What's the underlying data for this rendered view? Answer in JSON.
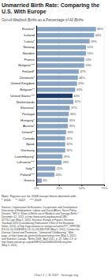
{
  "chart_data": {
    "type": "bar",
    "orientation": "horizontal",
    "title": "Unmarried Birth Rate: Comparing the\nU.S. With Europe",
    "subtitle": "Out-of-Wedlock Births as a Percentage of All Births",
    "categories": [
      "Estonia*",
      "Iceland",
      "Latvia*",
      "Norway",
      "Sweden",
      "France",
      "Bulgaria***",
      "Finland*",
      "Denmark*",
      "United Kingdom",
      "Belgium**",
      "United States***",
      "Netherlands",
      "Slovenia*",
      "Portugal",
      "Hungary*",
      "Austria*",
      "Ireland**",
      "Canada",
      "Spain",
      "Germany",
      "Luxembourg*",
      "Lithuania***",
      "Italy**",
      "Poland***",
      "Greece"
    ],
    "values": [
      66,
      64,
      59,
      55,
      55,
      53,
      53,
      47,
      46,
      45,
      43,
      40,
      41,
      37,
      36,
      35,
      35,
      33,
      32,
      32,
      32,
      29,
      28,
      21,
      20,
      6
    ],
    "value_labels": [
      "66%",
      "64%",
      "59%",
      "55%",
      "55%",
      "53%",
      "53%",
      "47%",
      "46%",
      "45%",
      "43%",
      "40%",
      "41%",
      "37%",
      "36%",
      "35%",
      "35%",
      "33%",
      "32%",
      "32%",
      "32%",
      "29%",
      "28%",
      "21%",
      "20%",
      "6%"
    ],
    "data_labels": true,
    "colors": [
      "#8aa4c4",
      "#8aa4c4",
      "#8aa4c4",
      "#8aa4c4",
      "#8aa4c4",
      "#8aa4c4",
      "#8aa4c4",
      "#8aa4c4",
      "#8aa4c4",
      "#8aa4c4",
      "#8aa4c4",
      "#1a3d6b",
      "#8aa4c4",
      "#8aa4c4",
      "#8aa4c4",
      "#8aa4c4",
      "#8aa4c4",
      "#8aa4c4",
      "#8aa4c4",
      "#8aa4c4",
      "#8aa4c4",
      "#8aa4c4",
      "#8aa4c4",
      "#8aa4c4",
      "#8aa4c4",
      "#8aa4c4"
    ],
    "xlim": [
      0,
      75
    ],
    "xticks": [
      {
        "value": 0,
        "label": "0%"
      },
      {
        "value": 25,
        "label": "25%"
      },
      {
        "value": 50,
        "label": "50%"
      },
      {
        "value": 75,
        "label": "75%"
      }
    ],
    "grid": true,
    "annotations": [
      "Note: Figures are for 2008 except those denoted with:\n* 2006     ** 2007     *** 2009",
      "Sources: Organisation for Economic Co-operation and Development,\nDirectorate of Employment, Labour and Social Affairs, Social Policy\nDivision, \"SF2.4: Share of Births out of Wedlock and Teenage Births,\"\nDecember 12, 2012, at http://www.oecd.org/dataoecd/1/86/\n41776,1.ppt (May 5, 2011); Eurostat, Europe in Figures: Eurostat\nYearbook 2013 (Luxembourg Publications Office of the European\nUnion, 2010), at http://epp.eurostat.ec.europa.eu/cache/ITY_OFFPUB/\nKS-CD-10-220/EN/KS-CD-10-220-EN.PDF (May 5, 2011); Centers for\nDisease Control and Prevention, \"Unmarried Childbearing,\" Web\npage, at http://www.cdc.gov/nchs/fastats/unmarr.htm (May 5, 2011);\nand Statistics Canada, \"Births 2008,\" April 2011, p. 20, Table 2-3, at\nhttp://www.statcan.gc.ca/pub/84F0210x/2008000/t006-eng.htm\n(May 5, 2011).",
      "Chart 1  |  B 2567   heritage.org"
    ]
  }
}
